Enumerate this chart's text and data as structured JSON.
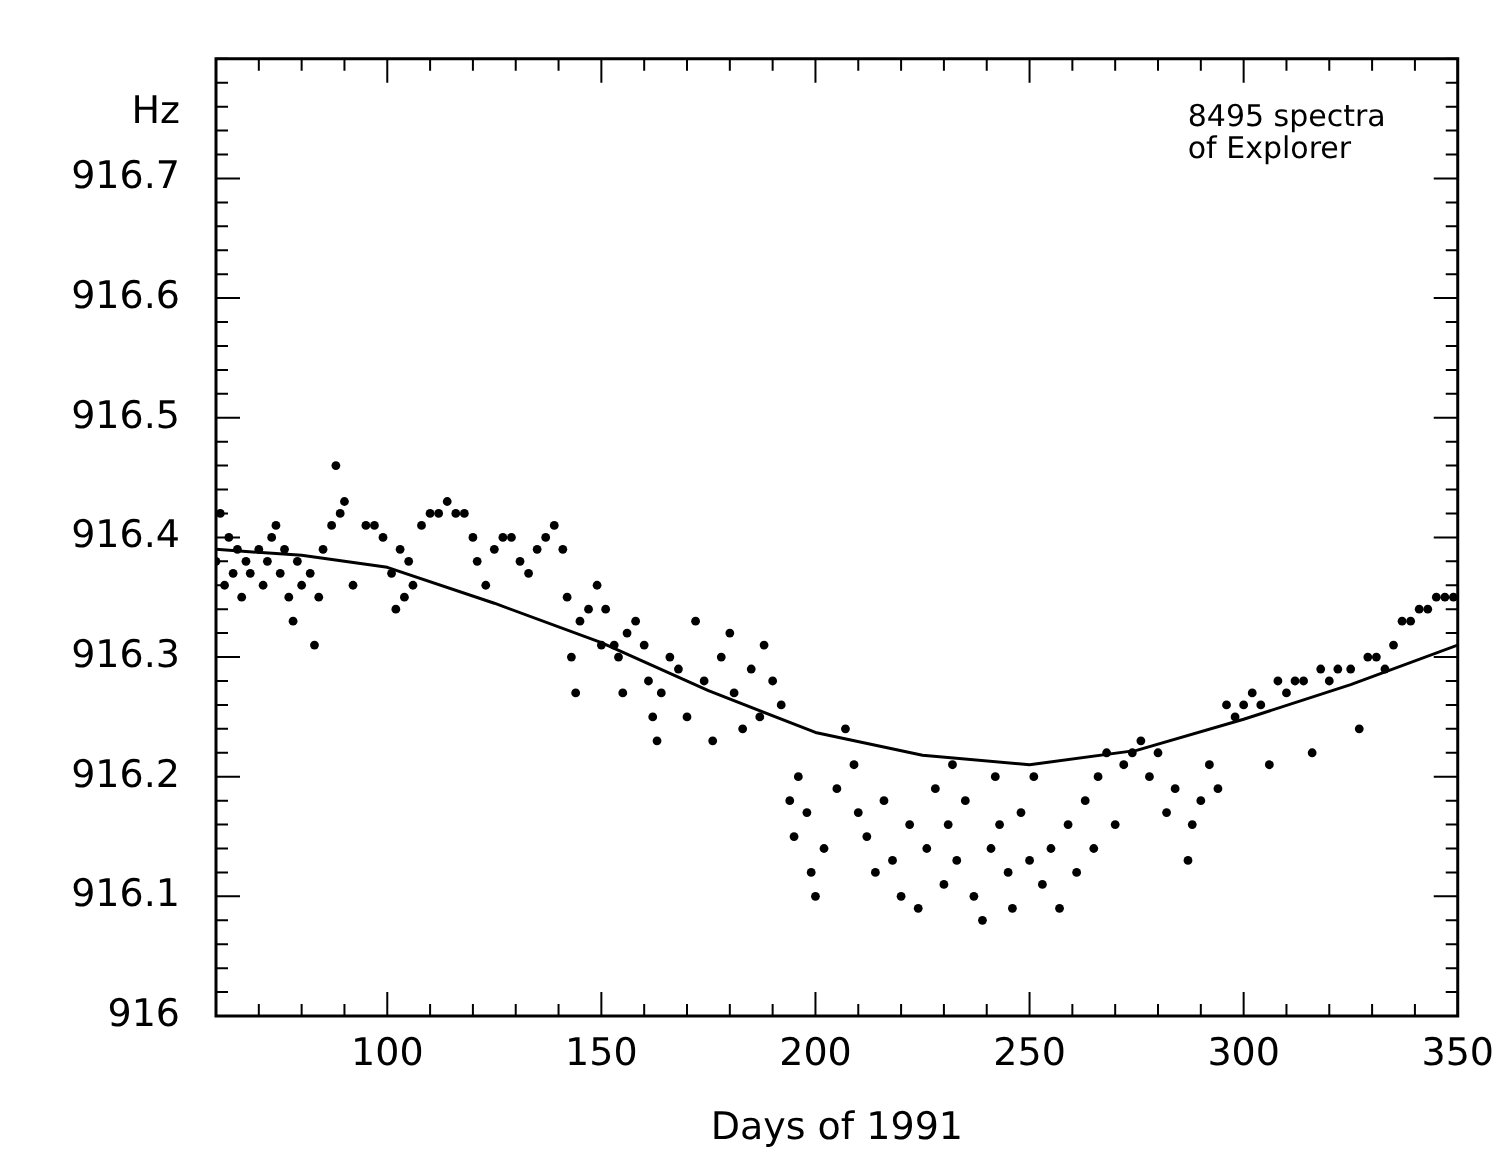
{
  "chart_data": {
    "type": "scatter",
    "xlabel": "Days of 1991",
    "ylabel": "Hz",
    "annotations": [
      "8495 spectra\nof Explorer"
    ],
    "grid": false,
    "legend": false,
    "xlim": [
      60,
      350
    ],
    "ylim": [
      916,
      916.8
    ],
    "xticks": [
      {
        "value": 60,
        "label": null
      },
      {
        "value": 70,
        "label": null
      },
      {
        "value": 80,
        "label": null
      },
      {
        "value": 90,
        "label": null
      },
      100,
      {
        "value": 110,
        "label": null
      },
      {
        "value": 120,
        "label": null
      },
      {
        "value": 130,
        "label": null
      },
      {
        "value": 140,
        "label": null
      },
      150,
      {
        "value": 160,
        "label": null
      },
      {
        "value": 170,
        "label": null
      },
      {
        "value": 180,
        "label": null
      },
      {
        "value": 190,
        "label": null
      },
      200,
      {
        "value": 210,
        "label": null
      },
      {
        "value": 220,
        "label": null
      },
      {
        "value": 230,
        "label": null
      },
      {
        "value": 240,
        "label": null
      },
      250,
      {
        "value": 260,
        "label": null
      },
      {
        "value": 270,
        "label": null
      },
      {
        "value": 280,
        "label": null
      },
      {
        "value": 290,
        "label": null
      },
      300,
      {
        "value": 310,
        "label": null
      },
      {
        "value": 320,
        "label": null
      },
      {
        "value": 330,
        "label": null
      },
      {
        "value": 340,
        "label": null
      },
      350
    ],
    "yticks": [
      916,
      {
        "value": 916.02,
        "label": null
      },
      {
        "value": 916.04,
        "label": null
      },
      {
        "value": 916.06,
        "label": null
      },
      {
        "value": 916.08,
        "label": null
      },
      916.1,
      {
        "value": 916.12,
        "label": null
      },
      {
        "value": 916.14,
        "label": null
      },
      {
        "value": 916.16,
        "label": null
      },
      {
        "value": 916.18,
        "label": null
      },
      916.2,
      {
        "value": 916.22,
        "label": null
      },
      {
        "value": 916.24,
        "label": null
      },
      {
        "value": 916.26,
        "label": null
      },
      {
        "value": 916.28,
        "label": null
      },
      916.3,
      {
        "value": 916.32,
        "label": null
      },
      {
        "value": 916.34,
        "label": null
      },
      {
        "value": 916.36,
        "label": null
      },
      {
        "value": 916.38,
        "label": null
      },
      916.4,
      {
        "value": 916.42,
        "label": null
      },
      {
        "value": 916.44,
        "label": null
      },
      {
        "value": 916.46,
        "label": null
      },
      {
        "value": 916.48,
        "label": null
      },
      916.5,
      {
        "value": 916.52,
        "label": null
      },
      {
        "value": 916.54,
        "label": null
      },
      {
        "value": 916.56,
        "label": null
      },
      {
        "value": 916.58,
        "label": null
      },
      916.6,
      {
        "value": 916.62,
        "label": null
      },
      {
        "value": 916.64,
        "label": null
      },
      {
        "value": 916.66,
        "label": null
      },
      {
        "value": 916.68,
        "label": null
      },
      916.7,
      {
        "value": 916.72,
        "label": null
      },
      {
        "value": 916.74,
        "label": null
      },
      {
        "value": 916.76,
        "label": null
      },
      {
        "value": 916.78,
        "label": null
      },
      {
        "value": 916.8,
        "label": null
      }
    ],
    "series": [
      {
        "type": "scatter",
        "marker": "circle",
        "color": "#000000",
        "x": [
          60,
          61,
          62,
          63,
          64,
          65,
          66,
          67,
          68,
          70,
          71,
          72,
          73,
          74,
          75,
          76,
          77,
          78,
          79,
          80,
          82,
          83,
          84,
          85,
          87,
          88,
          89,
          90,
          92,
          95,
          97,
          99,
          101,
          102,
          103,
          104,
          105,
          106,
          108,
          110,
          112,
          114,
          116,
          118,
          120,
          121,
          123,
          125,
          127,
          129,
          131,
          133,
          135,
          137,
          139,
          141,
          142,
          143,
          144,
          145,
          147,
          149,
          150,
          151,
          153,
          154,
          155,
          156,
          158,
          160,
          161,
          162,
          163,
          164,
          166,
          168,
          170,
          172,
          174,
          176,
          178,
          180,
          181,
          183,
          185,
          187,
          188,
          190,
          192,
          194,
          195,
          196,
          198,
          199,
          200,
          202,
          205,
          207,
          209,
          210,
          212,
          214,
          216,
          218,
          220,
          222,
          224,
          226,
          228,
          230,
          231,
          232,
          233,
          235,
          237,
          239,
          241,
          242,
          243,
          245,
          246,
          248,
          250,
          251,
          253,
          255,
          257,
          259,
          261,
          263,
          265,
          266,
          268,
          270,
          272,
          274,
          276,
          278,
          280,
          282,
          284,
          287,
          288,
          290,
          292,
          294,
          296,
          298,
          300,
          302,
          304,
          306,
          308,
          310,
          312,
          314,
          316,
          318,
          320,
          322,
          325,
          327,
          329,
          331,
          333,
          335,
          337,
          339,
          341,
          343,
          345,
          347,
          349
        ],
        "values": [
          916.38,
          916.42,
          916.36,
          916.4,
          916.37,
          916.39,
          916.35,
          916.38,
          916.37,
          916.39,
          916.36,
          916.38,
          916.4,
          916.41,
          916.37,
          916.39,
          916.35,
          916.33,
          916.38,
          916.36,
          916.37,
          916.31,
          916.35,
          916.39,
          916.41,
          916.46,
          916.42,
          916.43,
          916.36,
          916.41,
          916.41,
          916.4,
          916.37,
          916.34,
          916.39,
          916.35,
          916.38,
          916.36,
          916.41,
          916.42,
          916.42,
          916.43,
          916.42,
          916.42,
          916.4,
          916.38,
          916.36,
          916.39,
          916.4,
          916.4,
          916.38,
          916.37,
          916.39,
          916.4,
          916.41,
          916.39,
          916.35,
          916.3,
          916.27,
          916.33,
          916.34,
          916.36,
          916.31,
          916.34,
          916.31,
          916.3,
          916.27,
          916.32,
          916.33,
          916.31,
          916.28,
          916.25,
          916.23,
          916.27,
          916.3,
          916.29,
          916.25,
          916.33,
          916.28,
          916.23,
          916.3,
          916.32,
          916.27,
          916.24,
          916.29,
          916.25,
          916.31,
          916.28,
          916.26,
          916.18,
          916.15,
          916.2,
          916.17,
          916.12,
          916.1,
          916.14,
          916.19,
          916.24,
          916.21,
          916.17,
          916.15,
          916.12,
          916.18,
          916.13,
          916.1,
          916.16,
          916.09,
          916.14,
          916.19,
          916.11,
          916.16,
          916.21,
          916.13,
          916.18,
          916.1,
          916.08,
          916.14,
          916.2,
          916.16,
          916.12,
          916.09,
          916.17,
          916.13,
          916.2,
          916.11,
          916.14,
          916.09,
          916.16,
          916.12,
          916.18,
          916.14,
          916.2,
          916.22,
          916.16,
          916.21,
          916.22,
          916.23,
          916.2,
          916.22,
          916.17,
          916.19,
          916.13,
          916.16,
          916.18,
          916.21,
          916.19,
          916.26,
          916.25,
          916.26,
          916.27,
          916.26,
          916.21,
          916.28,
          916.27,
          916.28,
          916.28,
          916.22,
          916.29,
          916.28,
          916.29,
          916.29,
          916.24,
          916.3,
          916.3,
          916.29,
          916.31,
          916.33,
          916.33,
          916.34,
          916.34,
          916.35,
          916.35,
          916.35
        ]
      },
      {
        "type": "line",
        "marker": "none",
        "line_style": "solid",
        "color": "#000000",
        "x": [
          60,
          80,
          100,
          125,
          150,
          175,
          200,
          225,
          250,
          275,
          300,
          325,
          350
        ],
        "values": [
          916.39,
          916.385,
          916.375,
          916.345,
          916.312,
          916.272,
          916.237,
          916.218,
          916.21,
          916.222,
          916.248,
          916.277,
          916.31
        ]
      }
    ]
  }
}
